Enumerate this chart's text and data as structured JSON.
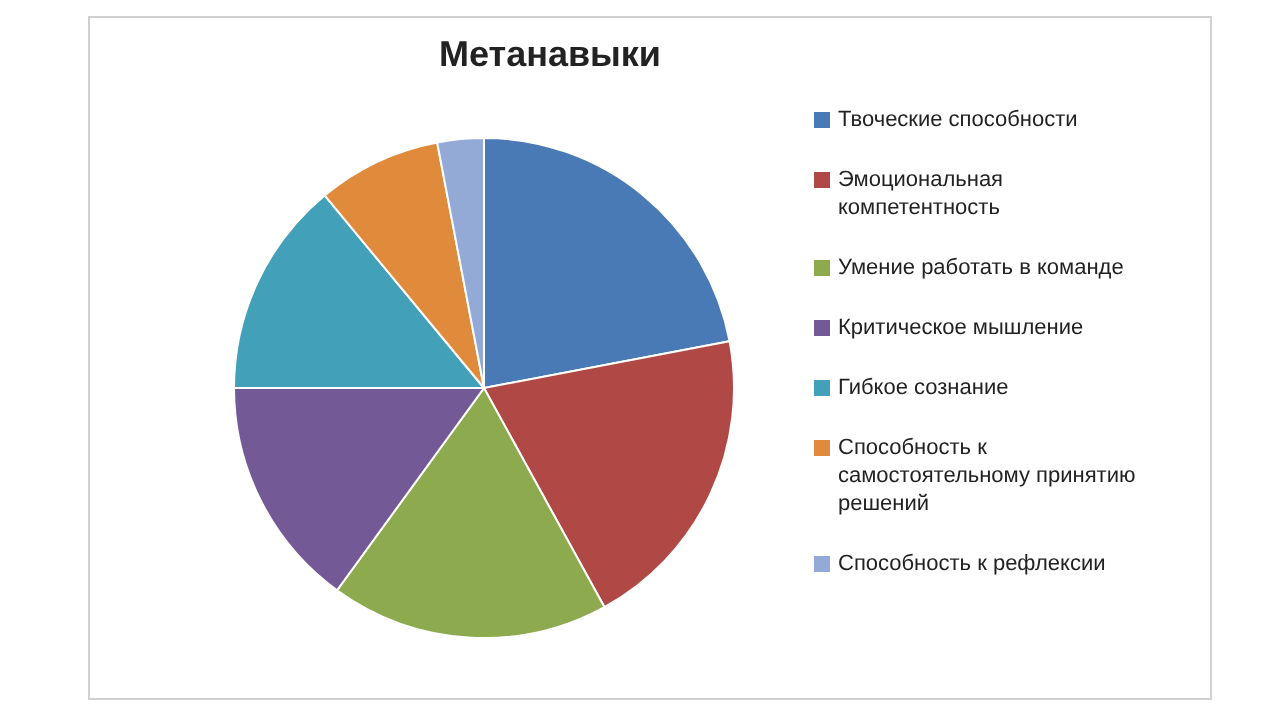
{
  "chart_data": {
    "type": "pie",
    "title": "Метанавыки",
    "categories": [
      "Твоческие способности",
      "Эмоциональная компетентность",
      "Умение работать в команде",
      "Критическое мышление",
      "Гибкое сознание",
      "Способность к самостоятельному принятию решений",
      "Способность к рефлексии"
    ],
    "values": [
      22,
      20,
      18,
      15,
      14,
      8,
      3
    ],
    "colors": [
      "#4a7ab5",
      "#b04846",
      "#8eaa4e",
      "#735a96",
      "#42a0b8",
      "#e08a3c",
      "#93a9d6"
    ],
    "legend": "right"
  }
}
